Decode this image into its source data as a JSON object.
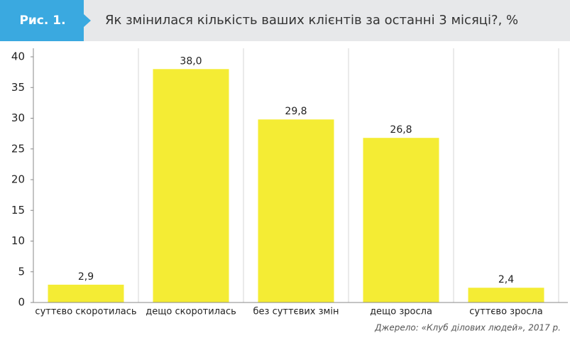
{
  "figure_label": "Рис. 1.",
  "source": "Джерело: «Клуб ділових людей», 2017 р.",
  "chart_data": {
    "type": "bar",
    "title": "Як змінилася кількість ваших клієнтів за останні 3 місяці?, %",
    "categories": [
      "суттєво скоротилась",
      "дещо скоротилась",
      "без суттєвих змін",
      "дещо зросла",
      "суттєво зросла"
    ],
    "values": [
      2.9,
      38.0,
      29.8,
      26.8,
      2.4
    ],
    "value_labels": [
      "2,9",
      "38,0",
      "29,8",
      "26,8",
      "2,4"
    ],
    "color": "#f4ec34",
    "ylim": [
      0,
      40
    ],
    "yticks": [
      0,
      5,
      10,
      15,
      20,
      25,
      30,
      35,
      40
    ]
  }
}
